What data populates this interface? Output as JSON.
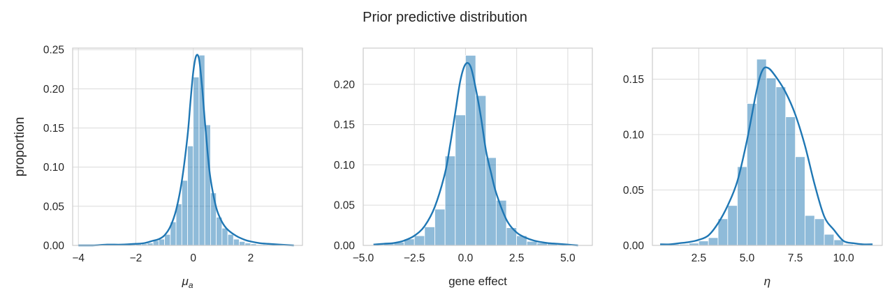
{
  "figure": {
    "title": "Prior predictive distribution"
  },
  "chart_data": [
    {
      "type": "bar",
      "subtype": "histogram-with-kde",
      "xlabel": "μa",
      "xlabel_main": "μ",
      "xlabel_sub": "a",
      "ylabel": "proportion",
      "xlim": [
        -4.2,
        3.8
      ],
      "ylim": [
        0,
        0.252
      ],
      "xticks": [
        -4,
        -2,
        0,
        2
      ],
      "xtick_labels": [
        "−4",
        "−2",
        "0",
        "2"
      ],
      "yticks": [
        0.0,
        0.05,
        0.1,
        0.15,
        0.2,
        0.25
      ],
      "ytick_labels": [
        "0.00",
        "0.05",
        "0.10",
        "0.15",
        "0.20",
        "0.25"
      ],
      "grid": true,
      "bin_edges": [
        -4.0,
        -3.8,
        -3.6,
        -3.4,
        -3.2,
        -3.0,
        -2.8,
        -2.6,
        -2.4,
        -2.2,
        -2.0,
        -1.8,
        -1.6,
        -1.4,
        -1.2,
        -1.0,
        -0.8,
        -0.6,
        -0.4,
        -0.2,
        0.0,
        0.2,
        0.4,
        0.6,
        0.8,
        1.0,
        1.2,
        1.4,
        1.6,
        1.8,
        2.0,
        2.2,
        2.4,
        2.6,
        2.8,
        3.0,
        3.2,
        3.4,
        3.6
      ],
      "values": [
        0.0,
        0.0,
        0.0,
        0.0,
        0.0,
        0.001,
        0.0,
        0.0,
        0.001,
        0.001,
        0.002,
        0.002,
        0.003,
        0.006,
        0.008,
        0.014,
        0.03,
        0.053,
        0.083,
        0.127,
        0.215,
        0.243,
        0.154,
        0.067,
        0.036,
        0.022,
        0.014,
        0.008,
        0.005,
        0.003,
        0.002,
        0.001,
        0.001,
        0.0,
        0.0,
        0.0,
        0.0,
        0.0
      ],
      "kde": {
        "x": [
          -4.0,
          -3.5,
          -3.0,
          -2.5,
          -2.0,
          -1.7,
          -1.4,
          -1.2,
          -1.0,
          -0.8,
          -0.6,
          -0.4,
          -0.2,
          -0.1,
          0.0,
          0.1,
          0.2,
          0.3,
          0.4,
          0.5,
          0.6,
          0.8,
          1.0,
          1.2,
          1.5,
          1.8,
          2.0,
          2.3,
          2.6,
          3.0,
          3.5
        ],
        "y": [
          0.0,
          0.0,
          0.001,
          0.001,
          0.002,
          0.003,
          0.006,
          0.008,
          0.013,
          0.024,
          0.045,
          0.082,
          0.14,
          0.183,
          0.222,
          0.242,
          0.238,
          0.205,
          0.16,
          0.118,
          0.085,
          0.048,
          0.03,
          0.02,
          0.012,
          0.007,
          0.005,
          0.003,
          0.002,
          0.001,
          0.0
        ]
      }
    },
    {
      "type": "bar",
      "subtype": "histogram-with-kde",
      "xlabel": "gene effect",
      "ylabel": "",
      "xlim": [
        -5.0,
        6.2
      ],
      "ylim": [
        0,
        0.245
      ],
      "xticks": [
        -5.0,
        -2.5,
        0.0,
        2.5,
        5.0
      ],
      "xtick_labels": [
        "−5.0",
        "−2.5",
        "0.0",
        "2.5",
        "5.0"
      ],
      "yticks": [
        0.0,
        0.05,
        0.1,
        0.15,
        0.2
      ],
      "ytick_labels": [
        "0.00",
        "0.05",
        "0.10",
        "0.15",
        "0.20"
      ],
      "grid": true,
      "bin_edges": [
        -4.5,
        -4.0,
        -3.5,
        -3.0,
        -2.5,
        -2.0,
        -1.5,
        -1.0,
        -0.5,
        0.0,
        0.5,
        1.0,
        1.5,
        2.0,
        2.5,
        3.0,
        3.5,
        4.0,
        4.5,
        5.0,
        5.5
      ],
      "values": [
        0.001,
        0.002,
        0.004,
        0.008,
        0.012,
        0.023,
        0.045,
        0.111,
        0.162,
        0.236,
        0.186,
        0.109,
        0.056,
        0.022,
        0.012,
        0.005,
        0.003,
        0.002,
        0.001,
        0.0
      ],
      "kde": {
        "x": [
          -4.5,
          -4.0,
          -3.5,
          -3.0,
          -2.5,
          -2.0,
          -1.5,
          -1.0,
          -0.75,
          -0.5,
          -0.25,
          0.0,
          0.25,
          0.5,
          0.75,
          1.0,
          1.25,
          1.5,
          2.0,
          2.5,
          3.0,
          3.5,
          4.0,
          4.5,
          5.0,
          5.5
        ],
        "y": [
          0.001,
          0.002,
          0.003,
          0.006,
          0.012,
          0.024,
          0.048,
          0.09,
          0.125,
          0.165,
          0.205,
          0.225,
          0.222,
          0.195,
          0.16,
          0.118,
          0.09,
          0.065,
          0.032,
          0.016,
          0.009,
          0.005,
          0.003,
          0.002,
          0.001,
          0.0
        ]
      }
    },
    {
      "type": "bar",
      "subtype": "histogram-with-kde",
      "xlabel": "η",
      "ylabel": "",
      "xlim": [
        0.1,
        12.0
      ],
      "ylim": [
        0,
        0.178
      ],
      "xticks": [
        2.5,
        5.0,
        7.5,
        10.0
      ],
      "xtick_labels": [
        "2.5",
        "5.0",
        "7.5",
        "10.0"
      ],
      "yticks": [
        0.0,
        0.05,
        0.1,
        0.15
      ],
      "ytick_labels": [
        "0.00",
        "0.05",
        "0.10",
        "0.15"
      ],
      "grid": true,
      "bin_edges": [
        0.5,
        1.0,
        1.5,
        2.0,
        2.5,
        3.0,
        3.5,
        4.0,
        4.5,
        5.0,
        5.5,
        6.0,
        6.5,
        7.0,
        7.5,
        8.0,
        8.5,
        9.0,
        9.5,
        10.0,
        10.5,
        11.0,
        11.5
      ],
      "values": [
        0.0,
        0.001,
        0.001,
        0.002,
        0.004,
        0.007,
        0.024,
        0.036,
        0.071,
        0.128,
        0.168,
        0.151,
        0.143,
        0.116,
        0.08,
        0.027,
        0.024,
        0.01,
        0.005,
        0.001,
        0.0,
        0.0
      ],
      "kde": {
        "x": [
          0.5,
          1.0,
          1.5,
          2.0,
          2.5,
          3.0,
          3.5,
          4.0,
          4.5,
          5.0,
          5.5,
          5.8,
          6.1,
          6.5,
          7.0,
          7.5,
          8.0,
          8.5,
          9.0,
          9.5,
          10.0,
          10.5,
          11.0,
          11.5
        ],
        "y": [
          0.001,
          0.001,
          0.002,
          0.003,
          0.005,
          0.009,
          0.02,
          0.036,
          0.058,
          0.095,
          0.14,
          0.158,
          0.16,
          0.152,
          0.138,
          0.118,
          0.09,
          0.055,
          0.026,
          0.014,
          0.004,
          0.002,
          0.001,
          0.001
        ]
      }
    }
  ]
}
